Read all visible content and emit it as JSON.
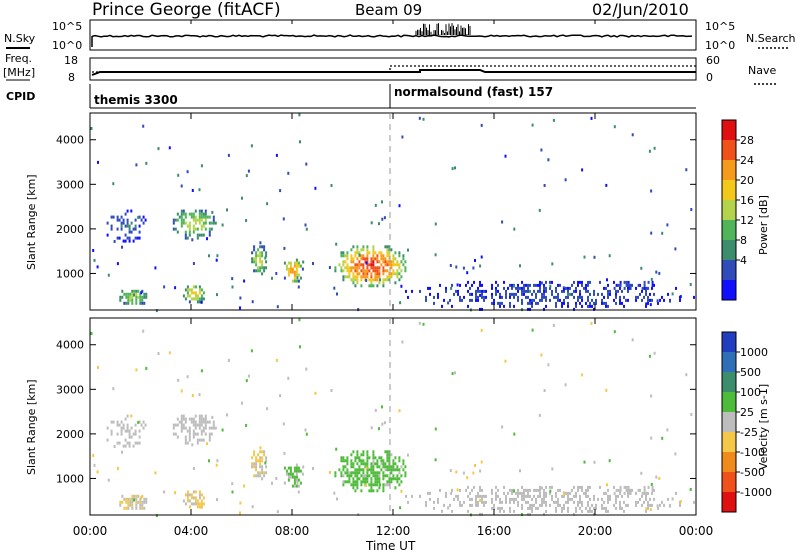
{
  "header": {
    "station": "Prince George (fitACF)",
    "beam": "Beam 09",
    "date": "02/Jun/2010"
  },
  "sky_panel": {
    "left_label": "N.Sky",
    "right_label": "N.Search",
    "left_ticks": [
      "10^5",
      "10^0"
    ],
    "right_ticks": [
      "10^5",
      "10^0"
    ]
  },
  "freq_panel": {
    "left_label_1": "Freq.",
    "left_label_2": "[MHz]",
    "left_ticks": [
      "18",
      "8"
    ],
    "right_ticks": [
      "60",
      "0"
    ],
    "right_label": "Nave"
  },
  "cpid_panel": {
    "label": "CPID",
    "program_1": "themis 3300",
    "program_2": "normalsound (fast) 157"
  },
  "time_axis": {
    "label": "Time UT",
    "ticks": [
      "00:00",
      "04:00",
      "08:00",
      "12:00",
      "16:00",
      "20:00",
      "00:00"
    ]
  },
  "power_panel": {
    "ylabel": "Slant Range [km]",
    "yticks": [
      "1000",
      "2000",
      "3000",
      "4000"
    ],
    "colorbar_label": "Power [dB]",
    "colorbar_ticks": [
      "4",
      "8",
      "12",
      "16",
      "20",
      "24",
      "28"
    ],
    "colors": [
      "#1010ff",
      "#2f4cb8",
      "#3b8d6d",
      "#4fb45a",
      "#b4d24a",
      "#f2c81a",
      "#f59a1a",
      "#f0501a",
      "#e01010"
    ]
  },
  "velocity_panel": {
    "ylabel": "Slant Range [km]",
    "yticks": [
      "1000",
      "2000",
      "3000",
      "4000"
    ],
    "colorbar_label": "Velocity [m s-1]",
    "colorbar_ticks": [
      "1000",
      "500",
      "100",
      "25",
      "-25",
      "-100",
      "-500",
      "-1000"
    ],
    "colors": [
      "#1f3fc0",
      "#2f6fb8",
      "#3b8d6d",
      "#4fbb3a",
      "#bdbdbd",
      "#f5c84a",
      "#f08a1a",
      "#f0501a",
      "#e01010"
    ]
  },
  "chart_data": {
    "type": "heatmap",
    "x_range_hours": [
      0,
      24
    ],
    "y_range_km": [
      180,
      4600
    ],
    "power_scale_db": [
      0,
      30
    ],
    "velocity_scale_ms": [
      -1000,
      1000
    ],
    "mode_change_hour": 12,
    "echo_regions": [
      {
        "t0": 0.5,
        "t1": 2.3,
        "r0": 1700,
        "r1": 2500,
        "power": 6,
        "velocity": 10
      },
      {
        "t0": 3.2,
        "t1": 5.0,
        "r0": 1800,
        "r1": 2500,
        "power": 16,
        "velocity": 5
      },
      {
        "t0": 3.6,
        "t1": 4.6,
        "r0": 350,
        "r1": 800,
        "power": 18,
        "velocity": -120
      },
      {
        "t0": 1.0,
        "t1": 2.3,
        "r0": 300,
        "r1": 700,
        "power": 14,
        "velocity": -120
      },
      {
        "t0": 6.3,
        "t1": 7.0,
        "r0": 1000,
        "r1": 1700,
        "power": 16,
        "velocity": -100
      },
      {
        "t0": 7.6,
        "t1": 8.4,
        "r0": 800,
        "r1": 1400,
        "power": 22,
        "velocity": 150
      },
      {
        "t0": 9.6,
        "t1": 12.6,
        "r0": 700,
        "r1": 1700,
        "power": 26,
        "velocity": 200
      },
      {
        "t0": 12.0,
        "t1": 24.0,
        "r0": 180,
        "r1": 900,
        "power": 5,
        "velocity": 0
      },
      {
        "t0": 20.5,
        "t1": 22.5,
        "r0": 600,
        "r1": 900,
        "power": 6,
        "velocity": 10
      }
    ]
  }
}
